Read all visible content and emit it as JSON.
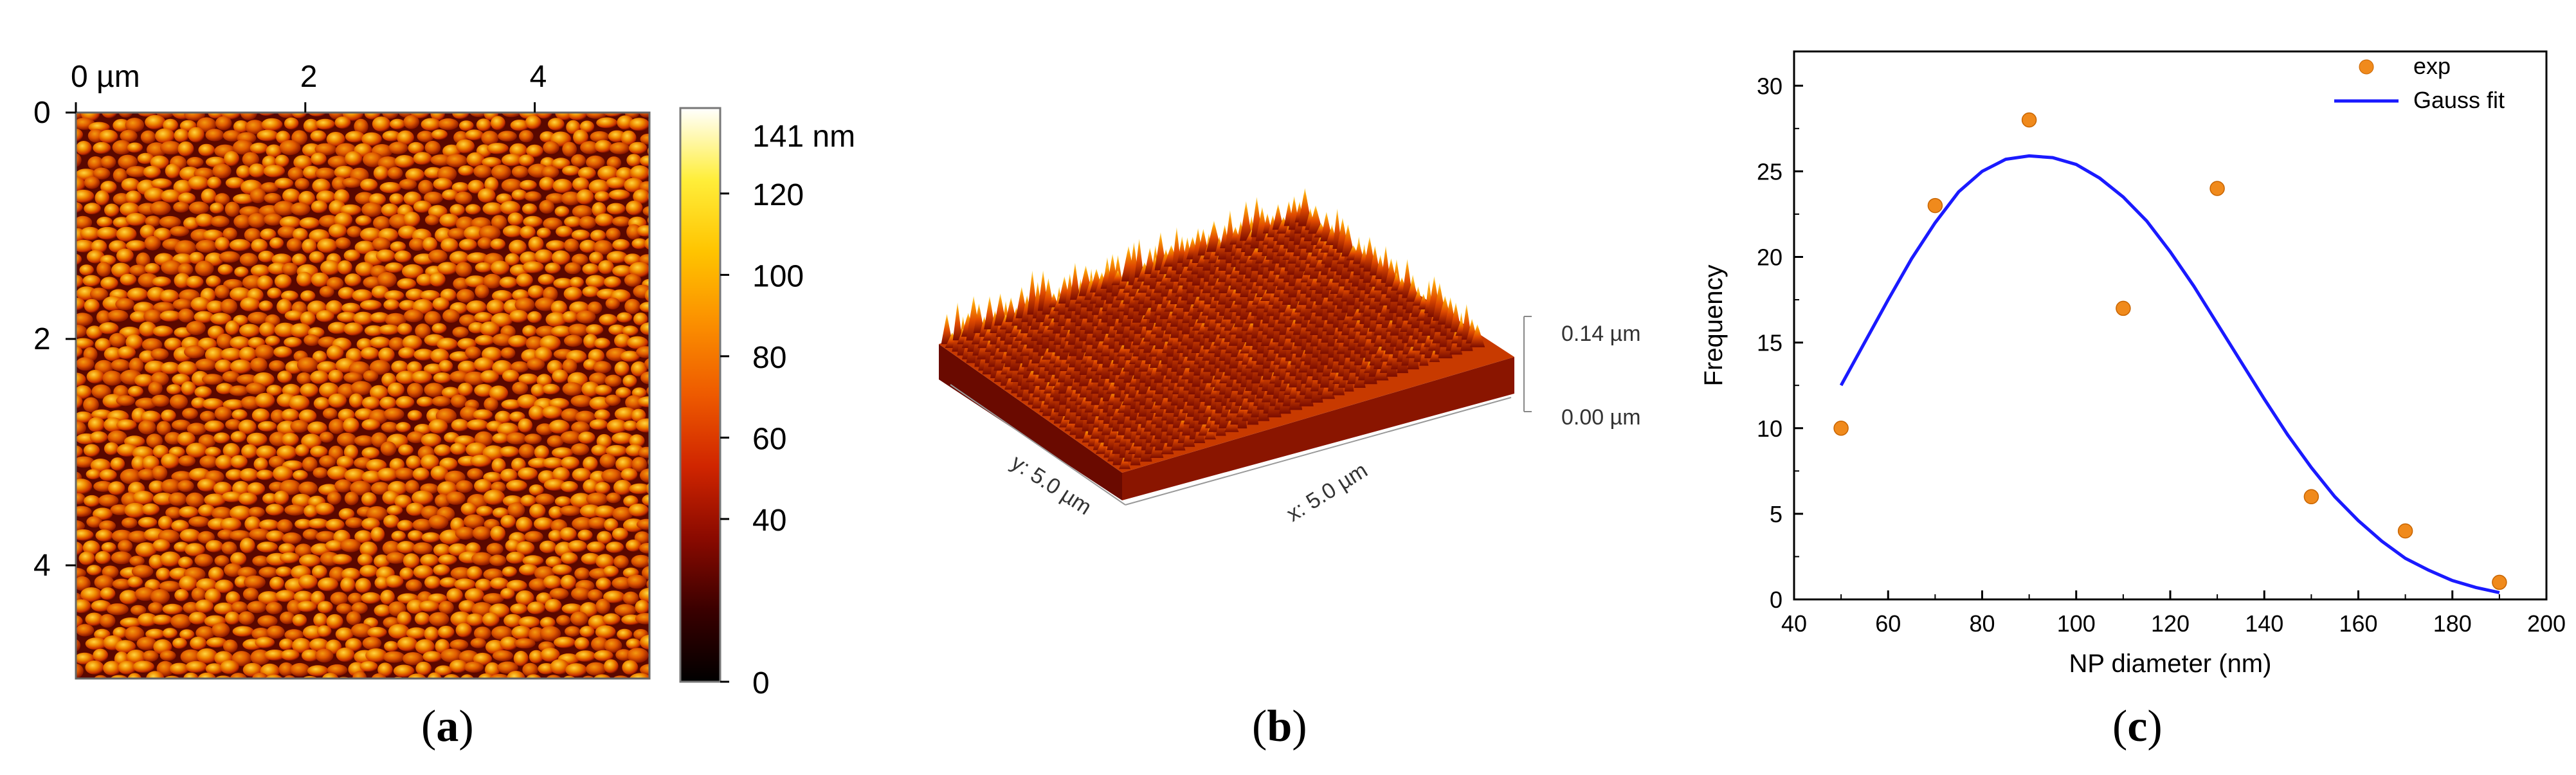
{
  "panels": {
    "a": {
      "caption_letter": "a",
      "x_ticks": [
        "0 µm",
        "2",
        "4"
      ],
      "x_tick_values": [
        0,
        2,
        4
      ],
      "y_ticks": [
        "0",
        "2",
        "4"
      ],
      "y_tick_values": [
        0,
        2,
        4
      ],
      "scan_size_um": 5.0,
      "colorbar": {
        "max_label": "141 nm",
        "tick_labels": [
          "120",
          "100",
          "80",
          "60",
          "40",
          "0"
        ],
        "tick_values": [
          120,
          100,
          80,
          60,
          40,
          0
        ],
        "max_value": 141,
        "colormap": [
          "#000000",
          "#3a0000",
          "#8a0a00",
          "#d02500",
          "#ee5a00",
          "#fb8f00",
          "#ffc400",
          "#ffee3a",
          "#ffffff"
        ]
      }
    },
    "b": {
      "caption_letter": "b",
      "z_max_label": "0.14 µm",
      "z_min_label": "0.00 µm",
      "y_axis_label": "y: 5.0 µm",
      "x_axis_label": "x: 5.0 µm",
      "surface_colors": [
        "#8a1200",
        "#c43000",
        "#e85400",
        "#f88a00",
        "#ffc82a",
        "#fff08a"
      ]
    },
    "c": {
      "caption_letter": "c",
      "chart_data": {
        "type": "scatter",
        "xlabel": "NP diameter (nm)",
        "ylabel": "Frequency",
        "xlim": [
          40,
          200
        ],
        "ylim": [
          0,
          32
        ],
        "x_ticks": [
          40,
          60,
          80,
          100,
          120,
          140,
          160,
          180,
          200
        ],
        "y_ticks": [
          0,
          5,
          10,
          15,
          20,
          25,
          30
        ],
        "grid": false,
        "legend_position": "top-right",
        "series": [
          {
            "name": "exp",
            "kind": "scatter",
            "color": "#f08a1c",
            "x": [
              50,
              70,
              90,
              110,
              130,
              150,
              170,
              190
            ],
            "y": [
              10,
              23,
              28,
              17,
              24,
              6,
              4,
              1
            ]
          },
          {
            "name": "Gauss fit",
            "kind": "line",
            "color": "#1a1aff",
            "x": [
              50,
              55,
              60,
              65,
              70,
              75,
              80,
              85,
              90,
              95,
              100,
              105,
              110,
              115,
              120,
              125,
              130,
              135,
              140,
              145,
              150,
              155,
              160,
              165,
              170,
              175,
              180,
              185,
              190
            ],
            "y": [
              12.5,
              15.0,
              17.5,
              19.9,
              22.0,
              23.8,
              25.0,
              25.7,
              25.9,
              25.8,
              25.4,
              24.6,
              23.5,
              22.1,
              20.3,
              18.3,
              16.1,
              13.9,
              11.7,
              9.6,
              7.7,
              6.0,
              4.6,
              3.4,
              2.4,
              1.7,
              1.1,
              0.7,
              0.4
            ]
          }
        ]
      }
    }
  }
}
